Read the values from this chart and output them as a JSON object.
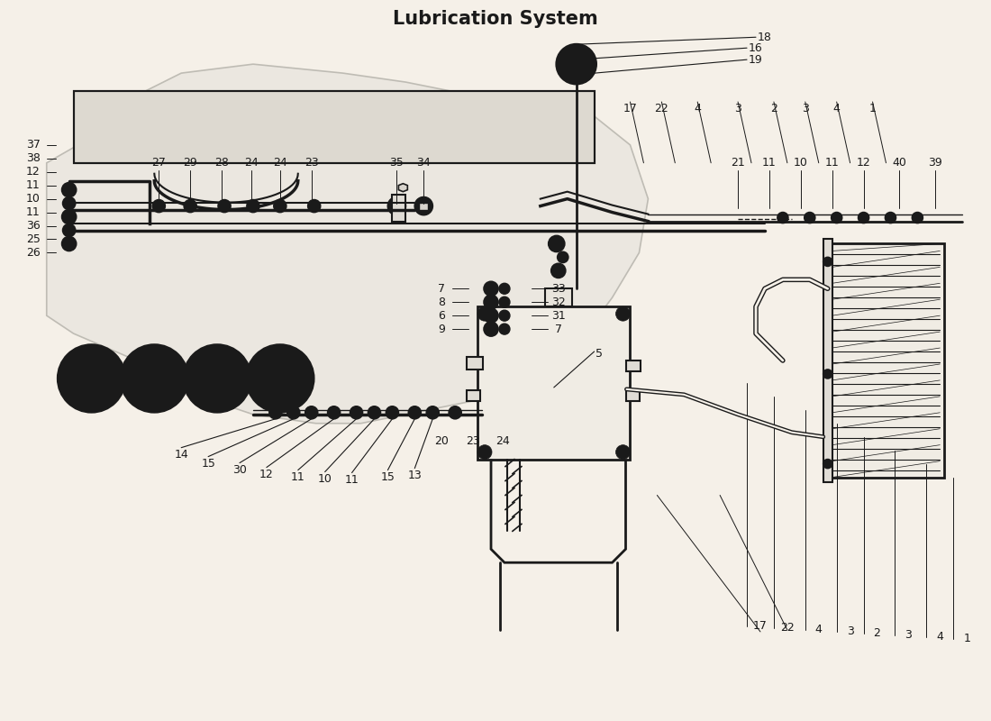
{
  "title": "Lubrication System",
  "bg_color": "#f5f0e8",
  "line_color": "#1a1a1a",
  "fig_width": 11.0,
  "fig_height": 8.0,
  "labels": {
    "top_right": [
      "18",
      "16",
      "19",
      "17",
      "22",
      "4",
      "3",
      "2",
      "3",
      "4",
      "1"
    ],
    "mid_left": [
      "14",
      "15",
      "30",
      "12",
      "11",
      "10",
      "11",
      "15",
      "13"
    ],
    "center_mid": [
      "20",
      "23",
      "24",
      "5"
    ],
    "center_lower": [
      "7",
      "8",
      "6",
      "9",
      "33",
      "32",
      "31",
      "7"
    ],
    "bottom_left": [
      "26",
      "25",
      "36",
      "11",
      "10",
      "11",
      "12",
      "38",
      "37"
    ],
    "bottom_mid": [
      "27",
      "29",
      "28",
      "24",
      "24",
      "23",
      "35",
      "34"
    ],
    "bottom_right": [
      "21",
      "11",
      "10",
      "11",
      "12",
      "40",
      "39"
    ]
  }
}
